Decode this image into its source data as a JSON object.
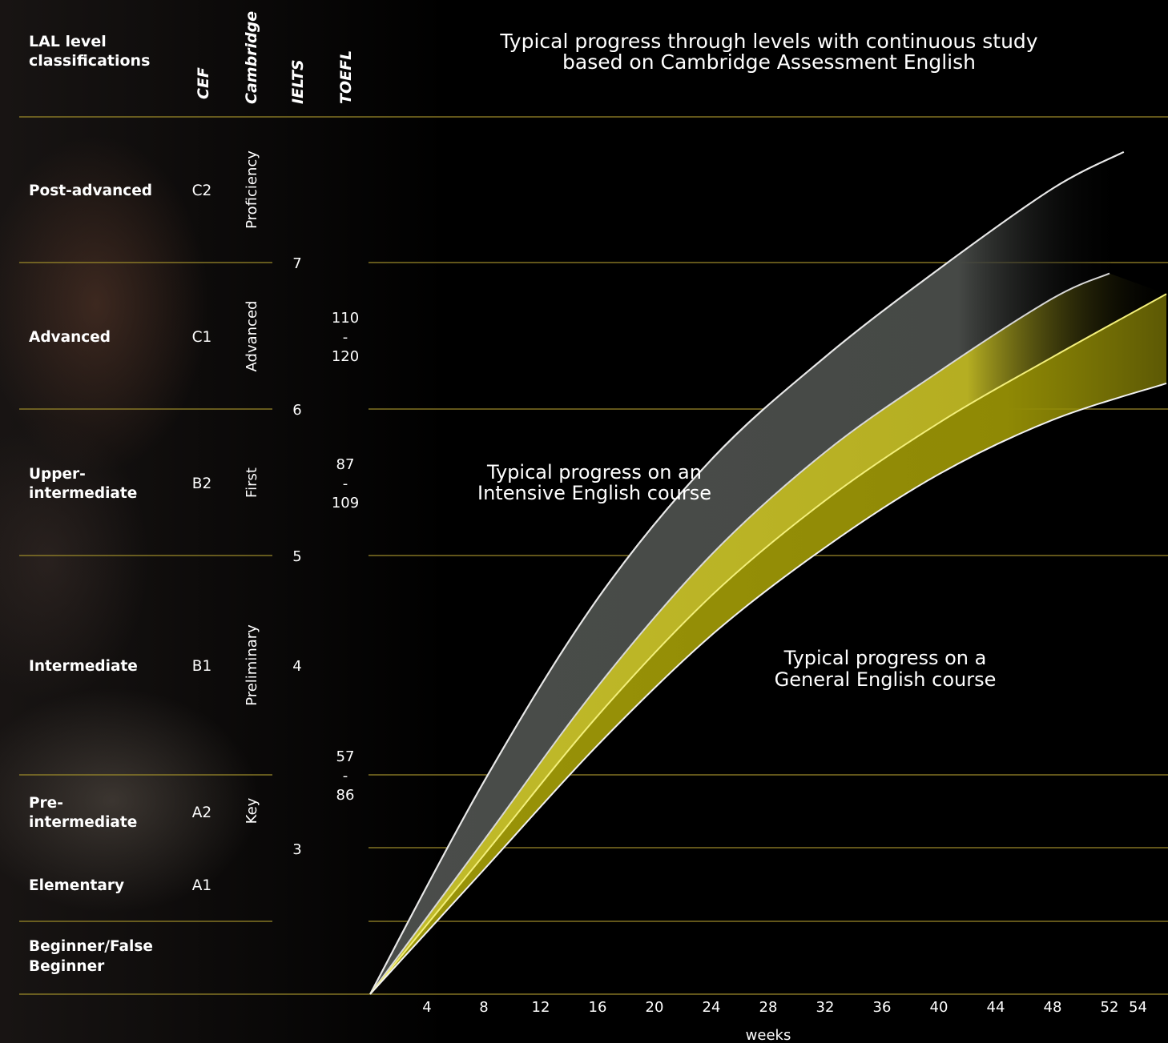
{
  "header": {
    "lal_heading_line1": "LAL level",
    "lal_heading_line2": "classifications",
    "col_cef": "CEF",
    "col_cambridge": "Cambridge",
    "col_ielts": "IELTS",
    "col_toefl": "TOEFL"
  },
  "levels": [
    {
      "lal": [
        "Post-advanced"
      ],
      "cef": "C2",
      "cambridge": "Proficiency"
    },
    {
      "lal": [
        "Advanced"
      ],
      "cef": "C1",
      "cambridge": "Advanced"
    },
    {
      "lal": [
        "Upper-",
        "intermediate"
      ],
      "cef": "B2",
      "cambridge": "First"
    },
    {
      "lal": [
        "Intermediate"
      ],
      "cef": "B1",
      "cambridge": "Preliminary"
    },
    {
      "lal": [
        "Pre-",
        "intermediate"
      ],
      "cef": "A2",
      "cambridge": "Key"
    },
    {
      "lal": [
        "Elementary"
      ],
      "cef": "A1",
      "cambridge": ""
    },
    {
      "lal": [
        "Beginner/False",
        "Beginner"
      ],
      "cef": "",
      "cambridge": ""
    }
  ],
  "ielts_scores": [
    "7",
    "6",
    "5",
    "4",
    "3"
  ],
  "toefl_ranges": [
    {
      "low": "110",
      "sep": "-",
      "high": "120"
    },
    {
      "low": "87",
      "sep": "-",
      "high": "109"
    },
    {
      "low": "57",
      "sep": "-",
      "high": "86"
    }
  ],
  "chart_data": {
    "type": "area",
    "title": "Typical progress through levels with continuous study based on Cambridge Assessment English",
    "title_lines": [
      "Typical progress through levels with continuous study",
      "based on Cambridge Assessment English"
    ],
    "xlabel": "weeks",
    "ylabel": "",
    "x_ticks": [
      "4",
      "8",
      "12",
      "16",
      "20",
      "24",
      "28",
      "32",
      "36",
      "40",
      "44",
      "48",
      "52",
      "54"
    ],
    "xlim": [
      0,
      56
    ],
    "grid": true,
    "annotations": [
      {
        "lines": [
          "Typical progress on an",
          "Intensive English course"
        ]
      },
      {
        "lines": [
          "Typical progress on a",
          "General English course"
        ]
      }
    ],
    "series": [
      {
        "band": "intensive",
        "color": "#454846",
        "upper": {
          "x": [
            0,
            8,
            16,
            24,
            32,
            40,
            48,
            53
          ],
          "y": [
            0,
            1.45,
            2.7,
            3.65,
            4.35,
            4.95,
            5.5,
            5.75
          ]
        },
        "lower": {
          "x": [
            0,
            8,
            16,
            24,
            32,
            40,
            48,
            52
          ],
          "y": [
            0,
            1.05,
            2.1,
            3.0,
            3.7,
            4.25,
            4.75,
            4.92
          ]
        }
      },
      {
        "band": "general",
        "color": "#b9b425",
        "upper": {
          "x": [
            0,
            8,
            16,
            24,
            32,
            40,
            48,
            52
          ],
          "y": [
            0,
            1.05,
            2.1,
            3.0,
            3.7,
            4.25,
            4.75,
            4.92
          ]
        },
        "middle": {
          "x": [
            0,
            8,
            16,
            24,
            32,
            40,
            48,
            56
          ],
          "y": [
            0,
            0.95,
            1.9,
            2.72,
            3.37,
            3.9,
            4.35,
            4.78
          ]
        },
        "lower": {
          "x": [
            0,
            8,
            16,
            24,
            32,
            40,
            48,
            56
          ],
          "y": [
            0,
            0.85,
            1.7,
            2.45,
            3.05,
            3.55,
            3.92,
            4.17
          ]
        }
      }
    ]
  },
  "colors": {
    "grid_line": "#9c8a2a",
    "gray_band": "#454846",
    "yellow_band_light": "#bdb72a",
    "yellow_band_dark": "#8f8a05",
    "background": "#000000"
  }
}
